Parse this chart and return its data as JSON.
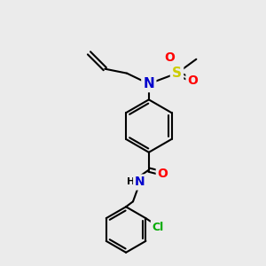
{
  "bg_color": "#ebebeb",
  "atom_colors": {
    "C": "#000000",
    "N": "#0000cc",
    "O": "#ff0000",
    "S": "#cccc00",
    "Cl": "#00aa00",
    "H": "#000000"
  },
  "bond_color": "#000000",
  "figsize": [
    3.0,
    3.0
  ],
  "dpi": 100
}
